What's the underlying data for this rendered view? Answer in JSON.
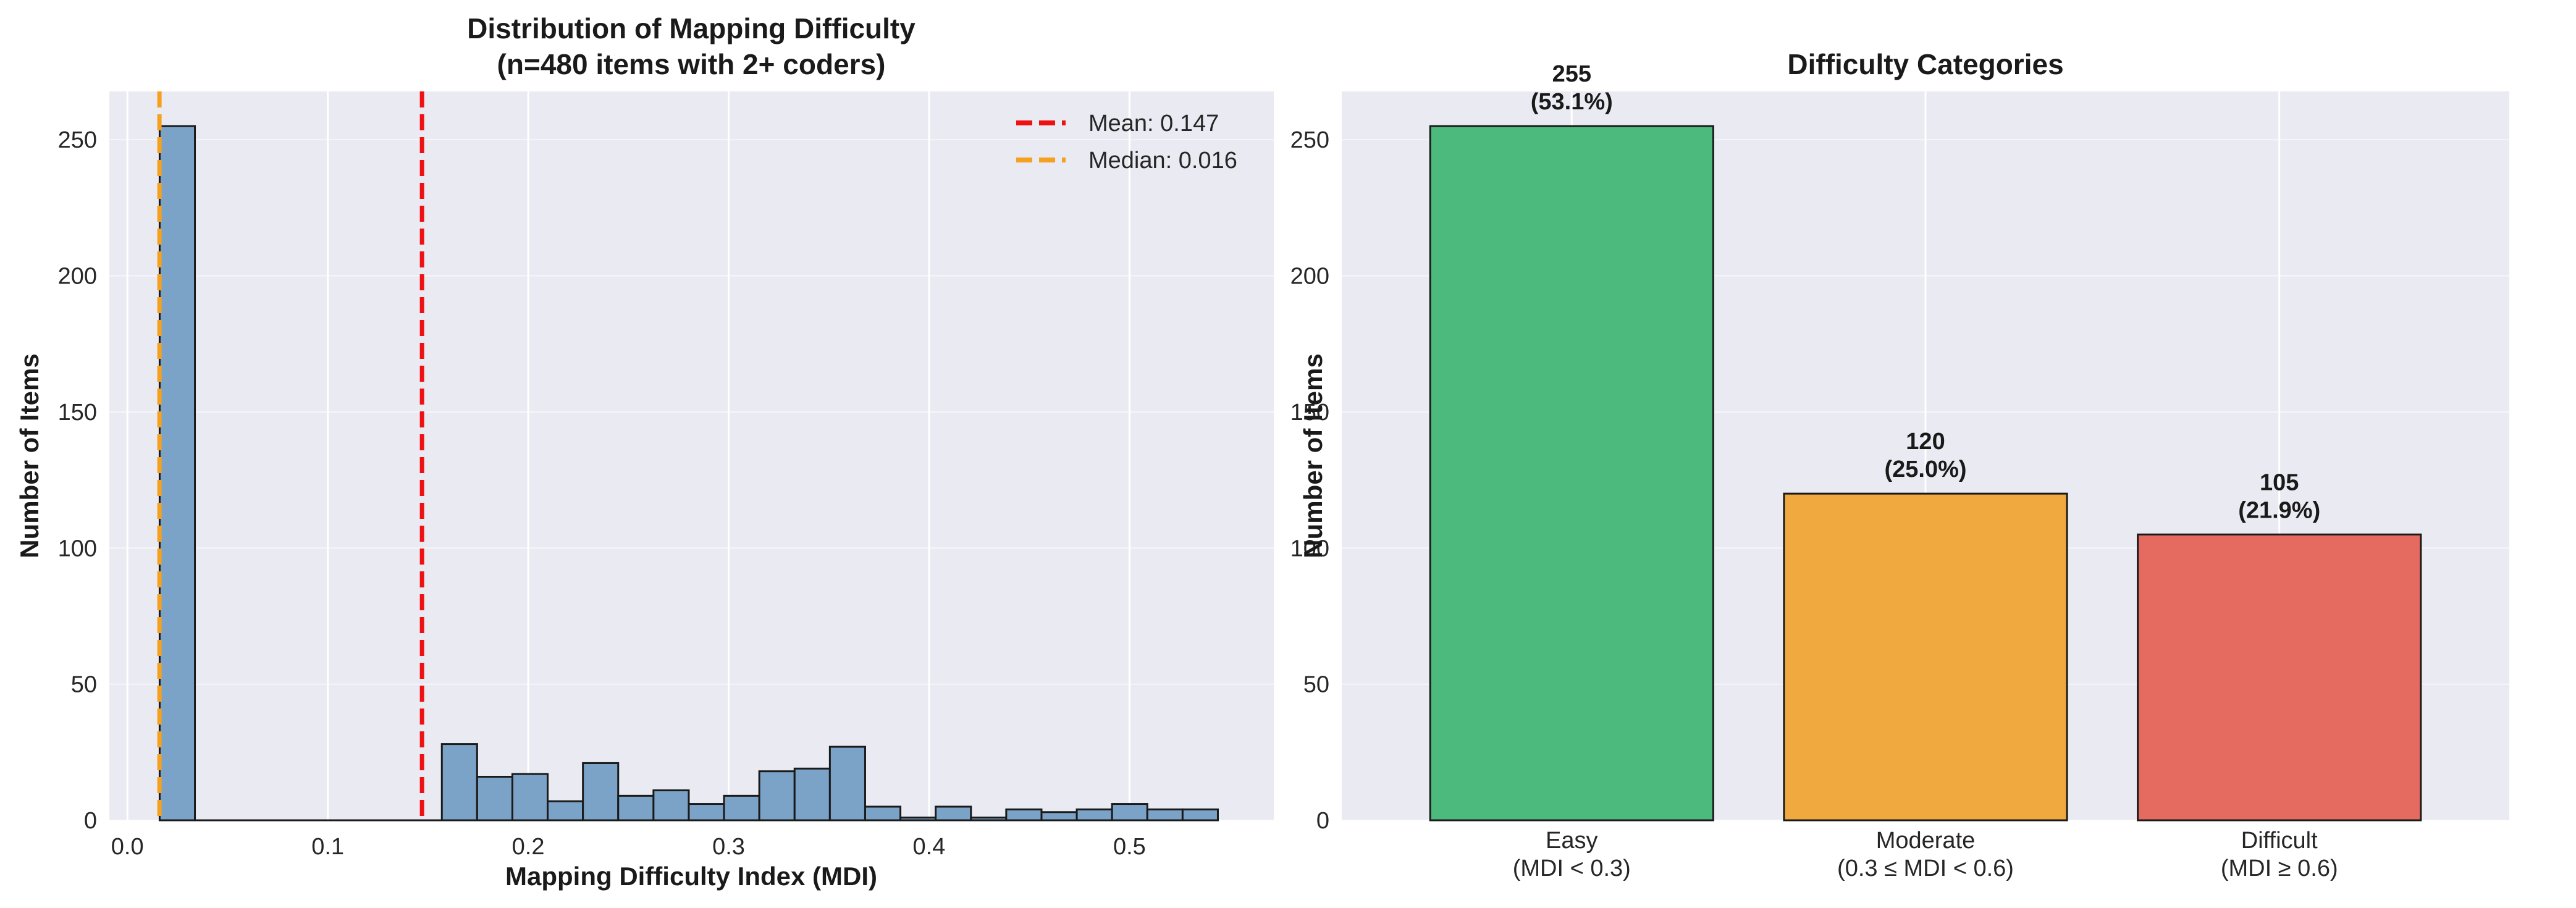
{
  "chart_data": [
    {
      "type": "bar",
      "title": "Distribution of Mapping Difficulty",
      "subtitle": "(n=480 items with 2+ coders)",
      "xlabel": "Mapping Difficulty Index (MDI)",
      "ylabel": "Number of Items",
      "xlim": [
        -0.009,
        0.572
      ],
      "ylim": [
        0,
        267.75
      ],
      "xticks": [
        "0.0",
        "0.1",
        "0.2",
        "0.3",
        "0.4",
        "0.5"
      ],
      "yticks": [
        "0",
        "50",
        "100",
        "150",
        "200",
        "250"
      ],
      "grid": true,
      "legend_position": "top-right",
      "bins": [
        {
          "x0": 0.0161,
          "x1": 0.0337,
          "count": 255
        },
        {
          "x0": 0.0337,
          "x1": 0.0513,
          "count": 0
        },
        {
          "x0": 0.0513,
          "x1": 0.0689,
          "count": 0
        },
        {
          "x0": 0.0689,
          "x1": 0.0865,
          "count": 0
        },
        {
          "x0": 0.0865,
          "x1": 0.1041,
          "count": 0
        },
        {
          "x0": 0.1041,
          "x1": 0.1217,
          "count": 0
        },
        {
          "x0": 0.1217,
          "x1": 0.1393,
          "count": 0
        },
        {
          "x0": 0.1393,
          "x1": 0.1569,
          "count": 0
        },
        {
          "x0": 0.1569,
          "x1": 0.1745,
          "count": 28
        },
        {
          "x0": 0.1745,
          "x1": 0.1921,
          "count": 16
        },
        {
          "x0": 0.1921,
          "x1": 0.2097,
          "count": 17
        },
        {
          "x0": 0.2097,
          "x1": 0.2273,
          "count": 7
        },
        {
          "x0": 0.2273,
          "x1": 0.2449,
          "count": 21
        },
        {
          "x0": 0.2449,
          "x1": 0.2625,
          "count": 9
        },
        {
          "x0": 0.2625,
          "x1": 0.2801,
          "count": 11
        },
        {
          "x0": 0.2801,
          "x1": 0.2977,
          "count": 6
        },
        {
          "x0": 0.2977,
          "x1": 0.3153,
          "count": 9
        },
        {
          "x0": 0.3153,
          "x1": 0.3329,
          "count": 18
        },
        {
          "x0": 0.3329,
          "x1": 0.3505,
          "count": 19
        },
        {
          "x0": 0.3505,
          "x1": 0.3681,
          "count": 27
        },
        {
          "x0": 0.3681,
          "x1": 0.3857,
          "count": 5
        },
        {
          "x0": 0.3857,
          "x1": 0.4033,
          "count": 1
        },
        {
          "x0": 0.4033,
          "x1": 0.4209,
          "count": 5
        },
        {
          "x0": 0.4209,
          "x1": 0.4385,
          "count": 1
        },
        {
          "x0": 0.4385,
          "x1": 0.4561,
          "count": 4
        },
        {
          "x0": 0.4561,
          "x1": 0.4737,
          "count": 3
        },
        {
          "x0": 0.4737,
          "x1": 0.4913,
          "count": 4
        },
        {
          "x0": 0.4913,
          "x1": 0.5089,
          "count": 6
        },
        {
          "x0": 0.5089,
          "x1": 0.5265,
          "count": 4
        },
        {
          "x0": 0.5265,
          "x1": 0.5441,
          "count": 4
        }
      ],
      "bar_color": "#7ba3c8",
      "reference_lines": [
        {
          "label": "Mean: 0.147",
          "x": 0.147,
          "color": "#ee1111"
        },
        {
          "label": "Median: 0.016",
          "x": 0.016,
          "color": "#f5a11f"
        }
      ]
    },
    {
      "type": "bar",
      "title": "Difficulty Categories",
      "xlabel": "",
      "ylabel": "Number of Items",
      "ylim": [
        0,
        267.75
      ],
      "yticks": [
        "0",
        "50",
        "100",
        "150",
        "200",
        "250"
      ],
      "grid": true,
      "categories": [
        {
          "name": "Easy",
          "range": "(MDI < 0.3)",
          "value": 255,
          "label_value": "255",
          "label_pct": "(53.1%)",
          "color": "#4dba7d"
        },
        {
          "name": "Moderate",
          "range": "(0.3 ≤ MDI < 0.6)",
          "value": 120,
          "label_value": "120",
          "label_pct": "(25.0%)",
          "color": "#f0a93f"
        },
        {
          "name": "Difficult",
          "range": "(MDI ≥ 0.6)",
          "value": 105,
          "label_value": "105",
          "label_pct": "(21.9%)",
          "color": "#e56a5f"
        }
      ]
    }
  ]
}
